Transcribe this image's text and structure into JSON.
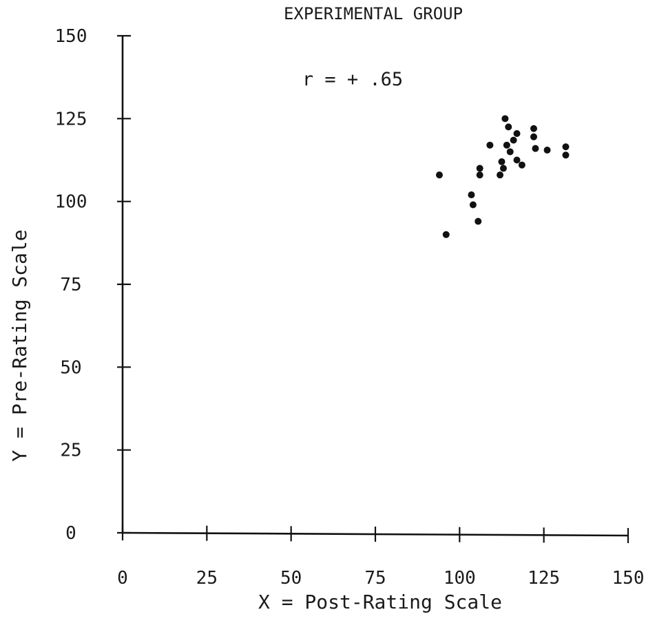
{
  "chart_data": {
    "type": "scatter",
    "title": "EXPERIMENTAL GROUP",
    "annotation": "r = + .65",
    "xlabel": "X = Post-Rating Scale",
    "ylabel": "Y = Pre-Rating Scale",
    "xlim": [
      0,
      150
    ],
    "ylim": [
      0,
      150
    ],
    "x_ticks": [
      0,
      25,
      50,
      75,
      100,
      125,
      150
    ],
    "y_ticks": [
      0,
      25,
      50,
      75,
      100,
      125,
      150
    ],
    "x_tick_labels": [
      "0",
      "25",
      "50",
      "75",
      "100",
      "125",
      "150"
    ],
    "y_tick_labels": [
      "0",
      "25",
      "50",
      "75",
      "100",
      "125",
      "150"
    ],
    "grid": false,
    "legend": "none",
    "points": [
      {
        "x": 94,
        "y": 108
      },
      {
        "x": 96,
        "y": 90
      },
      {
        "x": 103.5,
        "y": 102
      },
      {
        "x": 104,
        "y": 99
      },
      {
        "x": 105.5,
        "y": 94
      },
      {
        "x": 106,
        "y": 110
      },
      {
        "x": 106,
        "y": 108
      },
      {
        "x": 109,
        "y": 117
      },
      {
        "x": 112,
        "y": 108
      },
      {
        "x": 112.5,
        "y": 112
      },
      {
        "x": 113,
        "y": 110
      },
      {
        "x": 113.5,
        "y": 125
      },
      {
        "x": 114,
        "y": 117
      },
      {
        "x": 114.5,
        "y": 122.5
      },
      {
        "x": 115,
        "y": 115
      },
      {
        "x": 116,
        "y": 118.5
      },
      {
        "x": 117,
        "y": 120.5
      },
      {
        "x": 117,
        "y": 112.5
      },
      {
        "x": 118.5,
        "y": 111
      },
      {
        "x": 122,
        "y": 122
      },
      {
        "x": 122,
        "y": 119.5
      },
      {
        "x": 122.5,
        "y": 116
      },
      {
        "x": 126,
        "y": 115.5
      },
      {
        "x": 131.5,
        "y": 116.5
      },
      {
        "x": 131.5,
        "y": 114
      }
    ]
  }
}
